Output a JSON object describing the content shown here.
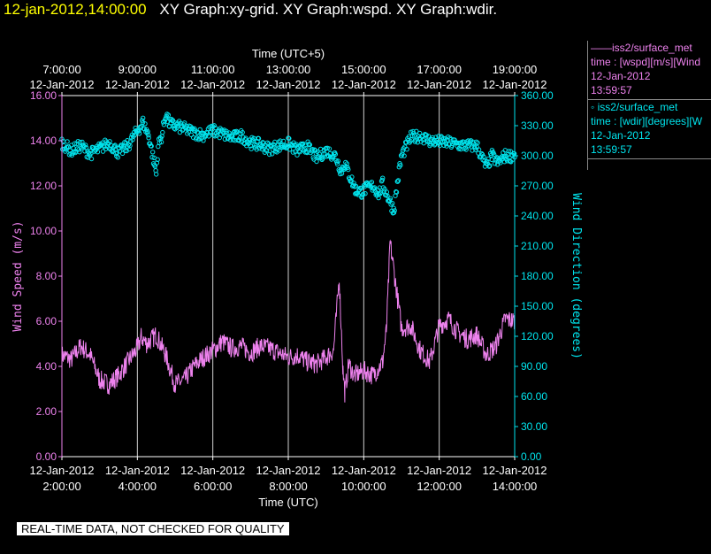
{
  "header": {
    "timestamp": "12-jan-2012,14:00:00",
    "graph_titles": "XY Graph:xy-grid.  XY Graph:wspd.  XY Graph:wdir."
  },
  "legend": [
    {
      "line1": "——iss2/surface_met",
      "line2": "time : [wspd][m/s][Wind",
      "line3": "12-Jan-2012",
      "line4": "13:59:57",
      "color": "#ee82ee"
    },
    {
      "line1": "◦  iss2/surface_met",
      "line2": "time : [wdir][degrees][W",
      "line3": "12-Jan-2012",
      "line4": "13:59:57",
      "color": "#00e5ee"
    }
  ],
  "footer": {
    "notice": "REAL-TIME DATA, NOT CHECKED FOR QUALITY"
  },
  "chart_data": {
    "type": "line",
    "top_axis": {
      "label": "Time (UTC+5)",
      "ticks": [
        {
          "time": "7:00:00",
          "date": "12-Jan-2012"
        },
        {
          "time": "9:00:00",
          "date": "12-Jan-2012"
        },
        {
          "time": "11:00:00",
          "date": "12-Jan-2012"
        },
        {
          "time": "13:00:00",
          "date": "12-Jan-2012"
        },
        {
          "time": "15:00:00",
          "date": "12-Jan-2012"
        },
        {
          "time": "17:00:00",
          "date": "12-Jan-2012"
        },
        {
          "time": "19:00:00",
          "date": "12-Jan-2012"
        }
      ]
    },
    "bottom_axis": {
      "label": "Time (UTC)",
      "ticks": [
        {
          "time": "2:00:00",
          "date": "12-Jan-2012"
        },
        {
          "time": "4:00:00",
          "date": "12-Jan-2012"
        },
        {
          "time": "6:00:00",
          "date": "12-Jan-2012"
        },
        {
          "time": "8:00:00",
          "date": "12-Jan-2012"
        },
        {
          "time": "10:00:00",
          "date": "12-Jan-2012"
        },
        {
          "time": "12:00:00",
          "date": "12-Jan-2012"
        },
        {
          "time": "14:00:00",
          "date": "12-Jan-2012"
        }
      ]
    },
    "xlim_utc_hours": [
      2,
      14
    ],
    "grid": true,
    "left_axis": {
      "label": "Wind Speed (m/s)",
      "ylim": [
        0,
        16
      ],
      "ticks": [
        "0.00",
        "2.00",
        "4.00",
        "6.00",
        "8.00",
        "10.00",
        "12.00",
        "14.00",
        "16.00"
      ],
      "color": "#ee82ee"
    },
    "right_axis": {
      "label": "Wind Direction (degrees)",
      "ylim": [
        0,
        360
      ],
      "ticks": [
        "0.00",
        "30.00",
        "60.00",
        "90.00",
        "120.00",
        "150.00",
        "180.00",
        "210.00",
        "240.00",
        "270.00",
        "300.00",
        "330.00",
        "360.00"
      ],
      "color": "#00e5ee"
    },
    "series": [
      {
        "name": "iss2/surface_met wspd",
        "axis": "left",
        "style": "line",
        "color": "#ee82ee",
        "x": [
          2.0,
          2.25,
          2.5,
          2.75,
          3.0,
          3.25,
          3.5,
          3.75,
          4.0,
          4.1,
          4.25,
          4.5,
          4.75,
          5.0,
          5.25,
          5.5,
          5.75,
          6.0,
          6.25,
          6.5,
          6.75,
          7.0,
          7.25,
          7.5,
          7.75,
          8.0,
          8.25,
          8.5,
          8.75,
          9.0,
          9.2,
          9.35,
          9.45,
          9.5,
          9.6,
          9.75,
          10.0,
          10.25,
          10.5,
          10.6,
          10.7,
          10.85,
          11.0,
          11.25,
          11.5,
          11.75,
          12.0,
          12.25,
          12.5,
          12.75,
          13.0,
          13.25,
          13.5,
          13.75,
          14.0
        ],
        "y": [
          4.5,
          4.3,
          4.9,
          4.5,
          3.4,
          3.2,
          3.6,
          4.2,
          4.8,
          5.3,
          5.0,
          5.4,
          4.5,
          3.2,
          3.4,
          4.0,
          4.4,
          4.7,
          5.1,
          4.8,
          4.9,
          4.6,
          4.9,
          4.8,
          4.6,
          4.4,
          4.5,
          4.2,
          4.1,
          4.4,
          4.7,
          7.9,
          3.8,
          2.8,
          4.1,
          3.6,
          3.8,
          3.6,
          4.2,
          5.6,
          9.5,
          7.6,
          5.7,
          5.8,
          4.7,
          4.2,
          5.8,
          6.1,
          5.5,
          5.2,
          5.4,
          4.5,
          4.9,
          6.1,
          6.0
        ]
      },
      {
        "name": "iss2/surface_met wdir",
        "axis": "right",
        "style": "markers",
        "color": "#00e5ee",
        "x": [
          2.0,
          2.25,
          2.5,
          2.75,
          3.0,
          3.25,
          3.5,
          3.75,
          4.0,
          4.15,
          4.3,
          4.45,
          4.5,
          4.55,
          4.65,
          4.75,
          4.85,
          5.0,
          5.25,
          5.5,
          5.75,
          6.0,
          6.25,
          6.5,
          6.75,
          7.0,
          7.25,
          7.5,
          7.75,
          8.0,
          8.25,
          8.5,
          8.75,
          9.0,
          9.25,
          9.4,
          9.5,
          9.65,
          9.8,
          9.95,
          10.05,
          10.25,
          10.4,
          10.5,
          10.65,
          10.8,
          10.9,
          11.0,
          11.25,
          11.5,
          11.75,
          12.0,
          12.25,
          12.5,
          12.75,
          13.0,
          13.25,
          13.4,
          13.55,
          13.75,
          13.9,
          14.0
        ],
        "y": [
          313,
          305,
          310,
          302,
          307,
          313,
          303,
          310,
          325,
          333,
          320,
          292,
          282,
          310,
          320,
          342,
          332,
          330,
          327,
          323,
          321,
          325,
          322,
          318,
          320,
          313,
          311,
          307,
          310,
          312,
          305,
          309,
          298,
          305,
          300,
          285,
          292,
          278,
          265,
          264,
          267,
          270,
          262,
          272,
          258,
          246,
          275,
          300,
          318,
          320,
          315,
          314,
          313,
          311,
          310,
          310,
          288,
          300,
          293,
          300,
          300,
          302
        ]
      }
    ]
  }
}
